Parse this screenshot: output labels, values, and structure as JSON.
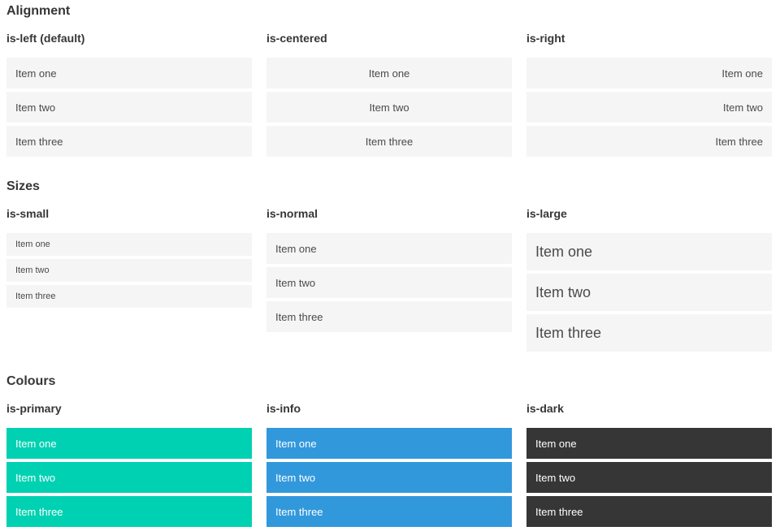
{
  "colors": {
    "page_bg": "#ffffff",
    "heading": "#363636",
    "item_bg": "#f5f5f5",
    "item_text": "#4a4a4a",
    "primary": "#00d1b2",
    "info": "#3298dc",
    "dark": "#363636",
    "on_color_text": "#ffffff"
  },
  "sections": [
    {
      "title": "Alignment",
      "groups": [
        {
          "label": "is-left (default)",
          "items": [
            "Item one",
            "Item two",
            "Item three"
          ]
        },
        {
          "label": "is-centered",
          "items": [
            "Item one",
            "Item two",
            "Item three"
          ]
        },
        {
          "label": "is-right",
          "items": [
            "Item one",
            "Item two",
            "Item three"
          ]
        }
      ]
    },
    {
      "title": "Sizes",
      "groups": [
        {
          "label": "is-small",
          "items": [
            "Item one",
            "Item two",
            "Item three"
          ]
        },
        {
          "label": "is-normal",
          "items": [
            "Item one",
            "Item two",
            "Item three"
          ]
        },
        {
          "label": "is-large",
          "items": [
            "Item one",
            "Item two",
            "Item three"
          ]
        }
      ]
    },
    {
      "title": "Colours",
      "groups": [
        {
          "label": "is-primary",
          "items": [
            "Item one",
            "Item two",
            "Item three"
          ]
        },
        {
          "label": "is-info",
          "items": [
            "Item one",
            "Item two",
            "Item three"
          ]
        },
        {
          "label": "is-dark",
          "items": [
            "Item one",
            "Item two",
            "Item three"
          ]
        }
      ]
    }
  ]
}
